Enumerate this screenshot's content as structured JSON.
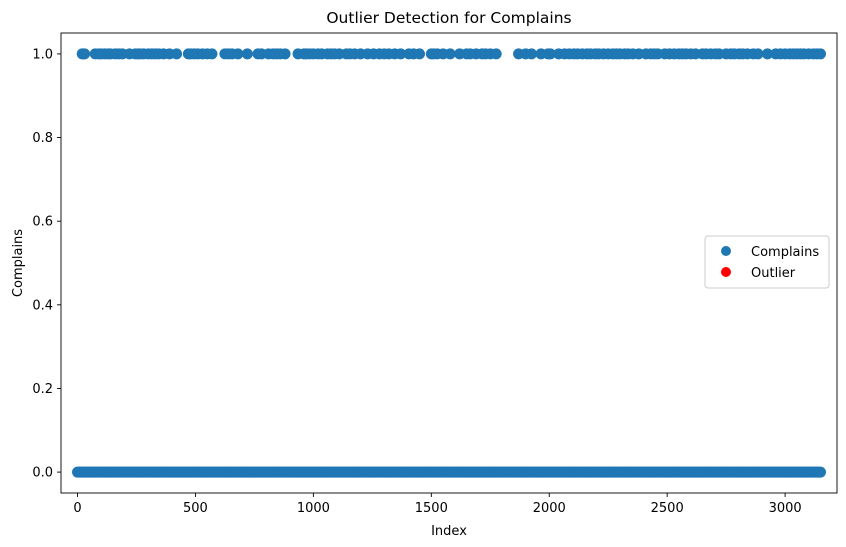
{
  "chart_data": {
    "type": "scatter",
    "title": "Outlier Detection for Complains",
    "xlabel": "Index",
    "ylabel": "Complains",
    "xlim": [
      -70,
      3220
    ],
    "ylim": [
      -0.05,
      1.05
    ],
    "x_ticks": [
      0,
      500,
      1000,
      1500,
      2000,
      2500,
      3000
    ],
    "x_tick_labels": [
      "0",
      "500",
      "1000",
      "1500",
      "2000",
      "2500",
      "3000"
    ],
    "y_ticks": [
      0.0,
      0.2,
      0.4,
      0.6,
      0.8,
      1.0
    ],
    "y_tick_labels": [
      "0.0",
      "0.2",
      "0.4",
      "0.6",
      "0.8",
      "1.0"
    ],
    "grid": false,
    "legend": {
      "placement": "center-right",
      "entries": [
        "Complains",
        "Outlier"
      ]
    },
    "colors": {
      "series": "#1f77b4",
      "outlier": "#ff0000"
    },
    "series": [
      {
        "name": "Complains",
        "color": "#1f77b4",
        "zero_x_range": [
          0,
          3150
        ],
        "zero_y": 0,
        "one_y": 1,
        "one_x": [
          20,
          25,
          30,
          75,
          90,
          100,
          115,
          130,
          140,
          160,
          175,
          190,
          220,
          245,
          255,
          265,
          280,
          300,
          315,
          330,
          345,
          365,
          390,
          420,
          470,
          480,
          495,
          510,
          530,
          550,
          570,
          625,
          640,
          655,
          680,
          720,
          765,
          780,
          810,
          830,
          845,
          860,
          880,
          935,
          960,
          970,
          985,
          1000,
          1020,
          1035,
          1060,
          1075,
          1090,
          1110,
          1140,
          1155,
          1175,
          1200,
          1230,
          1255,
          1280,
          1300,
          1320,
          1345,
          1370,
          1405,
          1425,
          1450,
          1500,
          1510,
          1525,
          1550,
          1580,
          1620,
          1650,
          1665,
          1690,
          1715,
          1730,
          1750,
          1775,
          1870,
          1900,
          1925,
          1965,
          1995,
          2005,
          2040,
          2065,
          2085,
          2105,
          2120,
          2140,
          2160,
          2175,
          2195,
          2210,
          2230,
          2250,
          2270,
          2285,
          2300,
          2320,
          2335,
          2355,
          2380,
          2410,
          2430,
          2445,
          2460,
          2490,
          2510,
          2530,
          2550,
          2565,
          2580,
          2600,
          2620,
          2650,
          2665,
          2685,
          2705,
          2720,
          2750,
          2770,
          2785,
          2805,
          2820,
          2840,
          2865,
          2885,
          2925,
          2960,
          2980,
          3000,
          3020,
          3035,
          3050,
          3065,
          3080,
          3100,
          3120,
          3135,
          3150
        ]
      },
      {
        "name": "Outlier",
        "color": "#ff0000",
        "x": [],
        "y": []
      }
    ]
  }
}
